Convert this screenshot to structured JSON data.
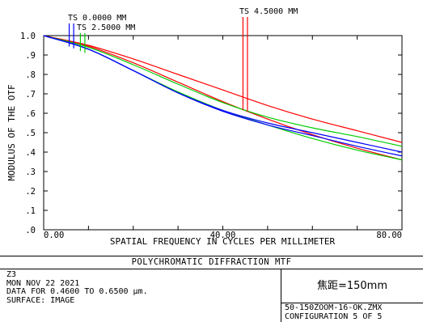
{
  "chart_data": {
    "type": "line",
    "title": "",
    "xlabel": "SPATIAL FREQUENCY IN CYCLES PER MILLIMETER",
    "ylabel": "MODULUS OF THE OTF",
    "xlim": [
      0,
      80
    ],
    "ylim": [
      0,
      1.0
    ],
    "x_tick_labels": [
      {
        "value": 0,
        "label": "0.00"
      },
      {
        "value": 40,
        "label": "40.00"
      },
      {
        "value": 80,
        "label": "80.00"
      }
    ],
    "y_tick_labels": [
      {
        "value": 0.0,
        "label": ".0"
      },
      {
        "value": 0.1,
        "label": ".1"
      },
      {
        "value": 0.2,
        "label": ".2"
      },
      {
        "value": 0.3,
        "label": ".3"
      },
      {
        "value": 0.4,
        "label": ".4"
      },
      {
        "value": 0.5,
        "label": ".5"
      },
      {
        "value": 0.6,
        "label": ".6"
      },
      {
        "value": 0.7,
        "label": ".7"
      },
      {
        "value": 0.8,
        "label": ".8"
      },
      {
        "value": 0.9,
        "label": ".9"
      },
      {
        "value": 1.0,
        "label": "1.0"
      }
    ],
    "grid": false,
    "series": [
      {
        "color": "#ff0000",
        "points": [
          [
            0,
            1.0
          ],
          [
            10,
            0.95
          ],
          [
            20,
            0.88
          ],
          [
            30,
            0.8
          ],
          [
            40,
            0.72
          ],
          [
            50,
            0.64
          ],
          [
            60,
            0.57
          ],
          [
            70,
            0.51
          ],
          [
            80,
            0.45
          ]
        ]
      },
      {
        "color": "#ff0000",
        "points": [
          [
            0,
            1.0
          ],
          [
            10,
            0.945
          ],
          [
            20,
            0.86
          ],
          [
            30,
            0.76
          ],
          [
            40,
            0.66
          ],
          [
            50,
            0.57
          ],
          [
            60,
            0.49
          ],
          [
            70,
            0.42
          ],
          [
            80,
            0.36
          ]
        ]
      },
      {
        "color": "#00cc00",
        "points": [
          [
            0,
            1.0
          ],
          [
            10,
            0.94
          ],
          [
            20,
            0.85
          ],
          [
            30,
            0.75
          ],
          [
            40,
            0.655
          ],
          [
            50,
            0.58
          ],
          [
            60,
            0.525
          ],
          [
            70,
            0.48
          ],
          [
            80,
            0.43
          ]
        ]
      },
      {
        "color": "#00cc00",
        "points": [
          [
            0,
            1.0
          ],
          [
            10,
            0.93
          ],
          [
            20,
            0.82
          ],
          [
            30,
            0.71
          ],
          [
            40,
            0.615
          ],
          [
            50,
            0.54
          ],
          [
            60,
            0.47
          ],
          [
            70,
            0.41
          ],
          [
            80,
            0.36
          ]
        ]
      },
      {
        "color": "#0000ff",
        "points": [
          [
            0,
            1.0
          ],
          [
            10,
            0.93
          ],
          [
            20,
            0.82
          ],
          [
            30,
            0.705
          ],
          [
            40,
            0.615
          ],
          [
            50,
            0.55
          ],
          [
            60,
            0.5
          ],
          [
            70,
            0.45
          ],
          [
            80,
            0.4
          ]
        ]
      },
      {
        "color": "#0000ff",
        "points": [
          [
            0,
            1.0
          ],
          [
            10,
            0.93
          ],
          [
            20,
            0.82
          ],
          [
            30,
            0.705
          ],
          [
            40,
            0.61
          ],
          [
            50,
            0.54
          ],
          [
            60,
            0.485
          ],
          [
            70,
            0.43
          ],
          [
            80,
            0.38
          ]
        ]
      }
    ],
    "field_markers": [
      {
        "label": "TS 0.0000 MM",
        "colors": [
          "#0000ff",
          "#0000ff"
        ],
        "x": [
          5.7,
          6.7
        ]
      },
      {
        "label": "TS 2.5000 MM",
        "colors": [
          "#00cc00",
          "#00cc00"
        ],
        "x": [
          8.2,
          9.2
        ]
      },
      {
        "label": "TS 4.5000 MM",
        "colors": [
          "#ff0000",
          "#ff0000"
        ],
        "x": [
          44.5,
          45.5
        ]
      }
    ]
  },
  "info": {
    "title": "POLYCHROMATIC DIFFRACTION MTF",
    "lines": [
      "Z3",
      "MON NOV 22 2021",
      "DATA FOR 0.4600 TO 0.6500 μm.",
      "SURFACE: IMAGE"
    ],
    "focal_label": "焦距=150mm",
    "file_name": "50-150ZOOM-16-OK.ZMX",
    "configuration": "CONFIGURATION 5 OF 5"
  }
}
